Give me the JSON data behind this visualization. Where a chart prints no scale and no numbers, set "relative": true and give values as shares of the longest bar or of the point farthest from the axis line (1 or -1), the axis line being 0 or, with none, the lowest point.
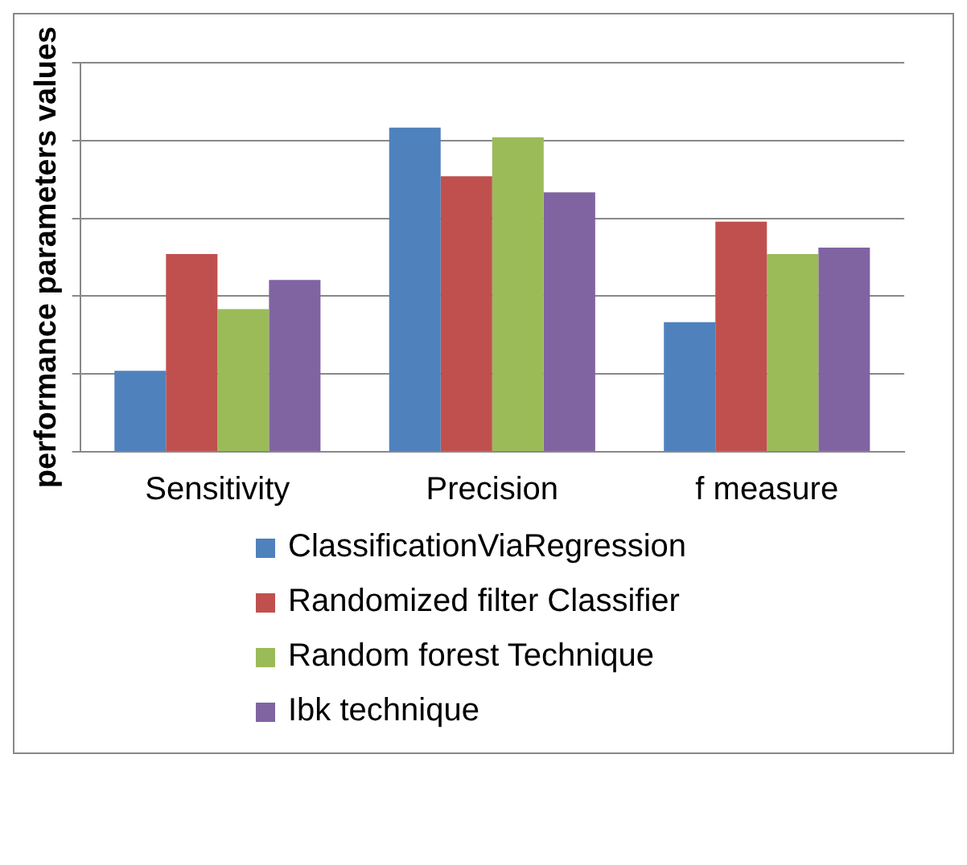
{
  "chart_data": {
    "type": "bar",
    "ylabel": "performance parameters values",
    "categories": [
      "Sensitivity",
      "Precision",
      "f measure"
    ],
    "relative": true,
    "grid": "y",
    "legend": "bottom",
    "series": [
      {
        "name": "ClassificationViaRegression",
        "color": "#4f81bd",
        "values": [
          0.25,
          1,
          0.4
        ]
      },
      {
        "name": "Randomized filter Classifier",
        "color": "#c0504d",
        "values": [
          0.61,
          0.85,
          0.71
        ]
      },
      {
        "name": "Random forest Technique",
        "color": "#9bbb59",
        "values": [
          0.44,
          0.97,
          0.61
        ]
      },
      {
        "name": "Ibk technique",
        "color": "#8064a2",
        "values": [
          0.53,
          0.8,
          0.63
        ]
      }
    ]
  }
}
